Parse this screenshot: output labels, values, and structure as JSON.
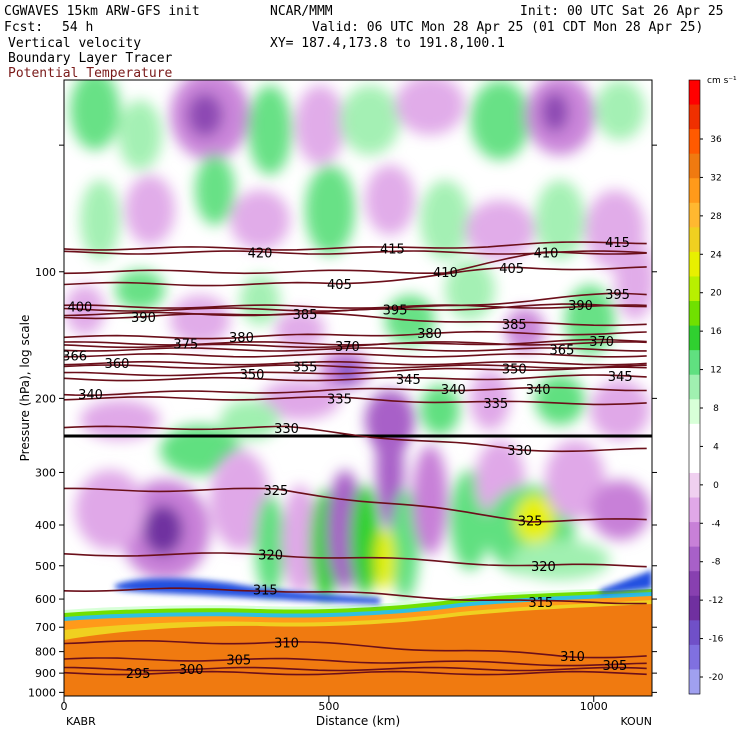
{
  "header": {
    "model": "CGWAVES 15km ARW-GFS init",
    "org": "NCAR/MMM",
    "init": "Init: 00 UTC Sat 26 Apr 25",
    "fcst_label": "Fcst:",
    "fcst_value": "54 h",
    "valid": "Valid: 06 UTC Mon 28 Apr 25 (01 CDT Mon 28 Apr 25)",
    "field1": "Vertical velocity",
    "field2": "Boundary Layer Tracer",
    "field3": "Potential Temperature",
    "xy": "XY= 187.4,173.8 to 191.8,100.1"
  },
  "colors": {
    "theta_contour": "#6b0f1a",
    "field3_text": "#7a1a1a"
  },
  "chart_data": {
    "type": "heatmap",
    "xlabel": "Distance (km)",
    "ylabel": "Pressure (hPa), log scale",
    "left_endpoint": "KABR",
    "right_endpoint": "KOUN",
    "xlim": [
      0,
      1110
    ],
    "ylim": [
      1020,
      35
    ],
    "y_scale": "log",
    "x_ticks": [
      "0",
      "500",
      "1000"
    ],
    "x_tick_values": [
      0,
      500,
      1000
    ],
    "y_ticks": [
      "100",
      "200",
      "300",
      "400",
      "500",
      "600",
      "700",
      "800",
      "900",
      "1000"
    ],
    "y_tick_values": [
      100,
      200,
      300,
      400,
      500,
      600,
      700,
      800,
      900,
      1000
    ],
    "colorbar": {
      "unit": "cm s⁻¹",
      "labels": [
        "36",
        "32",
        "28",
        "24",
        "20",
        "16",
        "12",
        "8",
        "4",
        "0",
        "-4",
        "-8",
        "-12",
        "-16",
        "-20"
      ],
      "values": [
        36,
        32,
        28,
        24,
        20,
        16,
        12,
        8,
        4,
        0,
        -4,
        -8,
        -12,
        -16,
        -20
      ],
      "colors": [
        "#ff0000",
        "#f03000",
        "#ff5a00",
        "#f07a10",
        "#ff9a1a",
        "#ffb830",
        "#f0d020",
        "#e8f000",
        "#b8f000",
        "#70e000",
        "#30d030",
        "#60e080",
        "#a0f0b0",
        "#d8ffd8",
        "#ffffff",
        "#ffffff",
        "#f0d0f0",
        "#e0a8e8",
        "#c880d8",
        "#a860c8",
        "#8840b0",
        "#7030a0",
        "#7050c8",
        "#8070e0",
        "#a0a0f0"
      ]
    },
    "isentrope_labels": [
      {
        "text": "420",
        "x": 370,
        "p": 90
      },
      {
        "text": "415",
        "x": 620,
        "p": 88
      },
      {
        "text": "415",
        "x": 1045,
        "p": 85
      },
      {
        "text": "410",
        "x": 720,
        "p": 100
      },
      {
        "text": "405",
        "x": 845,
        "p": 98
      },
      {
        "text": "410",
        "x": 910,
        "p": 90
      },
      {
        "text": "405",
        "x": 520,
        "p": 107
      },
      {
        "text": "400",
        "x": 30,
        "p": 121
      },
      {
        "text": "390",
        "x": 150,
        "p": 128
      },
      {
        "text": "385",
        "x": 455,
        "p": 126
      },
      {
        "text": "395",
        "x": 625,
        "p": 123
      },
      {
        "text": "390",
        "x": 975,
        "p": 120
      },
      {
        "text": "395",
        "x": 1045,
        "p": 113
      },
      {
        "text": "380",
        "x": 335,
        "p": 143
      },
      {
        "text": "375",
        "x": 230,
        "p": 148
      },
      {
        "text": "380",
        "x": 690,
        "p": 140
      },
      {
        "text": "385",
        "x": 850,
        "p": 133
      },
      {
        "text": "370",
        "x": 535,
        "p": 150
      },
      {
        "text": "370",
        "x": 1015,
        "p": 146
      },
      {
        "text": "365",
        "x": 940,
        "p": 153
      },
      {
        "text": "360",
        "x": 100,
        "p": 165
      },
      {
        "text": "366",
        "x": 20,
        "p": 158
      },
      {
        "text": "350",
        "x": 355,
        "p": 175
      },
      {
        "text": "355",
        "x": 455,
        "p": 168
      },
      {
        "text": "350",
        "x": 850,
        "p": 170
      },
      {
        "text": "345",
        "x": 650,
        "p": 180
      },
      {
        "text": "345",
        "x": 1050,
        "p": 177
      },
      {
        "text": "340",
        "x": 50,
        "p": 195
      },
      {
        "text": "340",
        "x": 735,
        "p": 190
      },
      {
        "text": "340",
        "x": 895,
        "p": 190
      },
      {
        "text": "335",
        "x": 520,
        "p": 200
      },
      {
        "text": "335",
        "x": 815,
        "p": 205
      },
      {
        "text": "330",
        "x": 420,
        "p": 235
      },
      {
        "text": "330",
        "x": 860,
        "p": 265
      },
      {
        "text": "325",
        "x": 400,
        "p": 330
      },
      {
        "text": "325",
        "x": 880,
        "p": 390
      },
      {
        "text": "320",
        "x": 390,
        "p": 470
      },
      {
        "text": "320",
        "x": 905,
        "p": 500
      },
      {
        "text": "315",
        "x": 380,
        "p": 570
      },
      {
        "text": "315",
        "x": 900,
        "p": 610
      },
      {
        "text": "310",
        "x": 420,
        "p": 760
      },
      {
        "text": "310",
        "x": 960,
        "p": 820
      },
      {
        "text": "305",
        "x": 330,
        "p": 835
      },
      {
        "text": "305",
        "x": 1040,
        "p": 860
      },
      {
        "text": "300",
        "x": 240,
        "p": 880
      },
      {
        "text": "295",
        "x": 140,
        "p": 900
      }
    ]
  }
}
